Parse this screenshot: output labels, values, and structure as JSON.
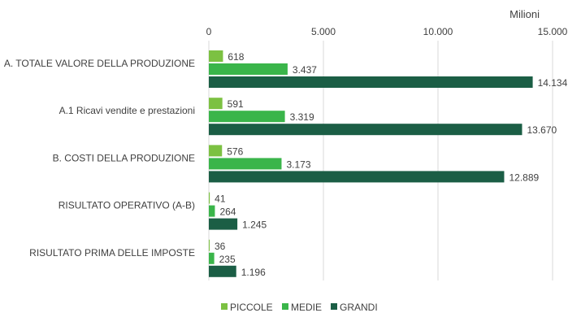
{
  "chart_data": {
    "type": "bar",
    "orientation": "horizontal",
    "unit_label": "Milioni",
    "xlim": [
      0,
      15000
    ],
    "x_ticks": [
      0,
      5000,
      10000,
      15000
    ],
    "x_tick_labels": [
      "0",
      "5.000",
      "10.000",
      "15.000"
    ],
    "grid": true,
    "legend_position": "bottom",
    "categories": [
      "A. TOTALE VALORE DELLA PRODUZIONE",
      "A.1 Ricavi vendite e prestazioni",
      "B. COSTI DELLA PRODUZIONE",
      "RISULTATO OPERATIVO (A-B)",
      "RISULTATO PRIMA DELLE IMPOSTE"
    ],
    "series": [
      {
        "name": "PICCOLE",
        "color": "#7cc142",
        "values": [
          618,
          591,
          576,
          41,
          36
        ],
        "labels": [
          "618",
          "591",
          "576",
          "41",
          "36"
        ]
      },
      {
        "name": "MEDIE",
        "color": "#3ab54a",
        "values": [
          3437,
          3319,
          3173,
          264,
          235
        ],
        "labels": [
          "3.437",
          "3.319",
          "3.173",
          "264",
          "235"
        ]
      },
      {
        "name": "GRANDI",
        "color": "#1b5e45",
        "values": [
          14134,
          13670,
          12889,
          1245,
          1196
        ],
        "labels": [
          "14.134",
          "13.670",
          "12.889",
          "1.245",
          "1.196"
        ]
      }
    ]
  }
}
